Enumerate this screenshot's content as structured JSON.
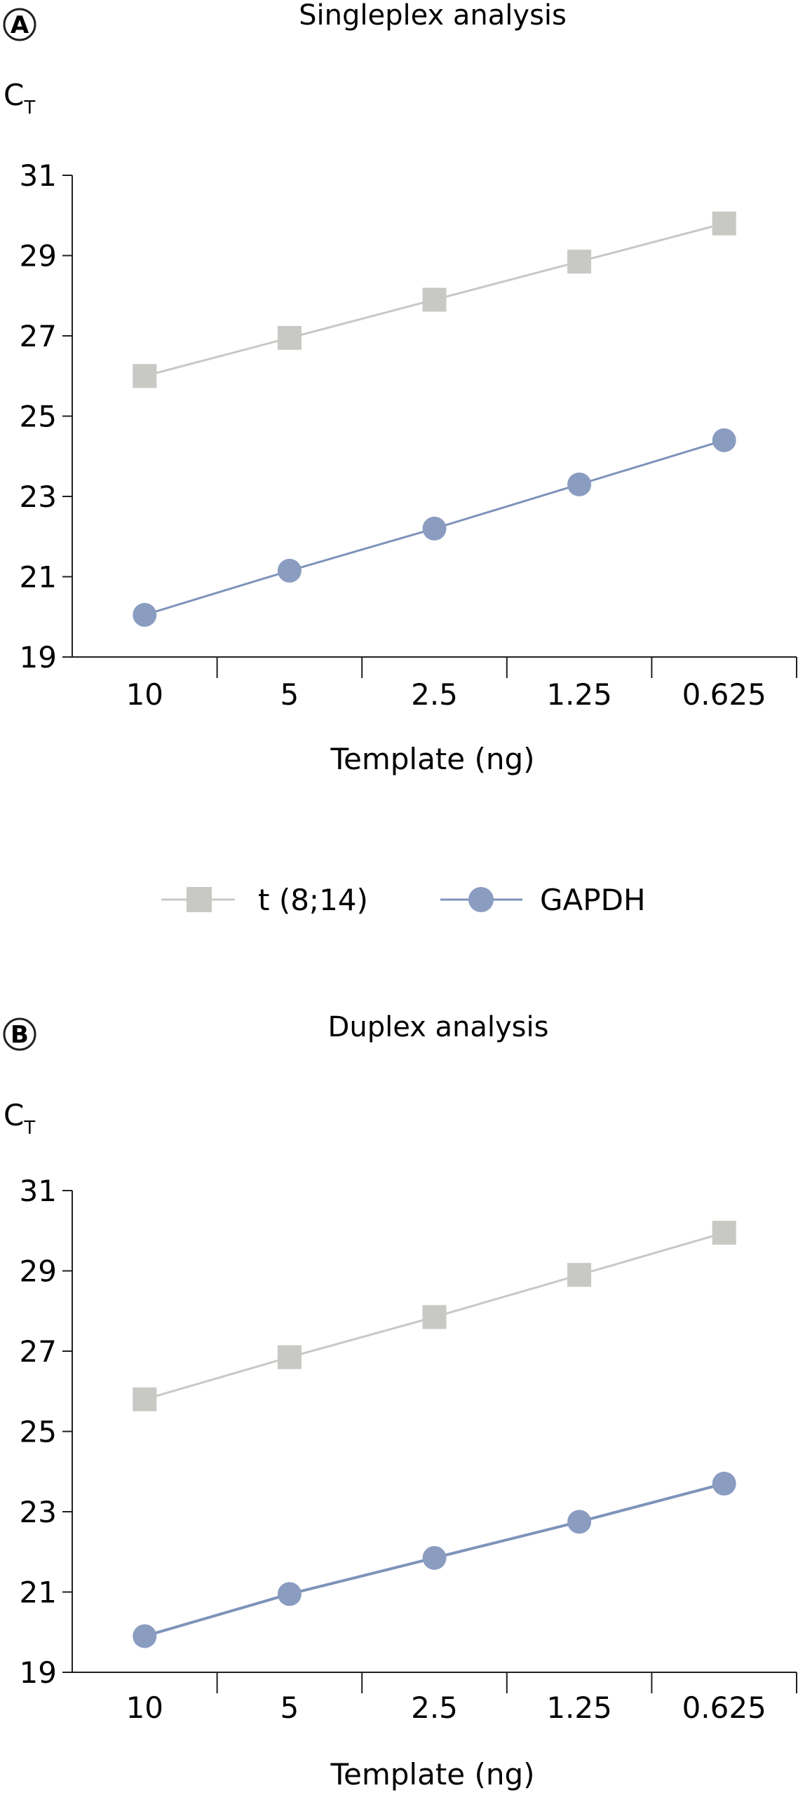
{
  "legend": {
    "series": [
      {
        "name": "t (8;14)",
        "marker": "square",
        "color": "#c8c8c5",
        "line_color": "#c8c8c5"
      },
      {
        "name": "GAPDH",
        "marker": "circle",
        "color": "#8a9cc0",
        "line_color": "#7e93ba"
      }
    ]
  },
  "chart_data": [
    {
      "type": "line",
      "panel": "A",
      "title": "Singleplex analysis",
      "xlabel": "Template (ng)",
      "ylabel": "C",
      "ylabel_subscript": "T",
      "categories": [
        "10",
        "5",
        "2.5",
        "1.25",
        "0.625"
      ],
      "ylim": [
        19,
        31
      ],
      "yticks": [
        19,
        21,
        23,
        25,
        27,
        29,
        31
      ],
      "series": [
        {
          "name": "t (8;14)",
          "values": [
            26.0,
            26.95,
            27.9,
            28.85,
            29.8
          ]
        },
        {
          "name": "GAPDH",
          "values": [
            20.05,
            21.15,
            22.2,
            23.3,
            24.4
          ]
        }
      ]
    },
    {
      "type": "line",
      "panel": "B",
      "title": "Duplex analysis",
      "xlabel": "Template (ng)",
      "ylabel": "C",
      "ylabel_subscript": "T",
      "categories": [
        "10",
        "5",
        "2.5",
        "1.25",
        "0.625"
      ],
      "ylim": [
        19,
        31
      ],
      "yticks": [
        19,
        21,
        23,
        25,
        27,
        29,
        31
      ],
      "series": [
        {
          "name": "t (8;14)",
          "values": [
            25.8,
            26.85,
            27.85,
            28.9,
            29.95
          ]
        },
        {
          "name": "GAPDH",
          "values": [
            19.9,
            20.95,
            21.85,
            22.75,
            23.7
          ]
        }
      ]
    }
  ]
}
